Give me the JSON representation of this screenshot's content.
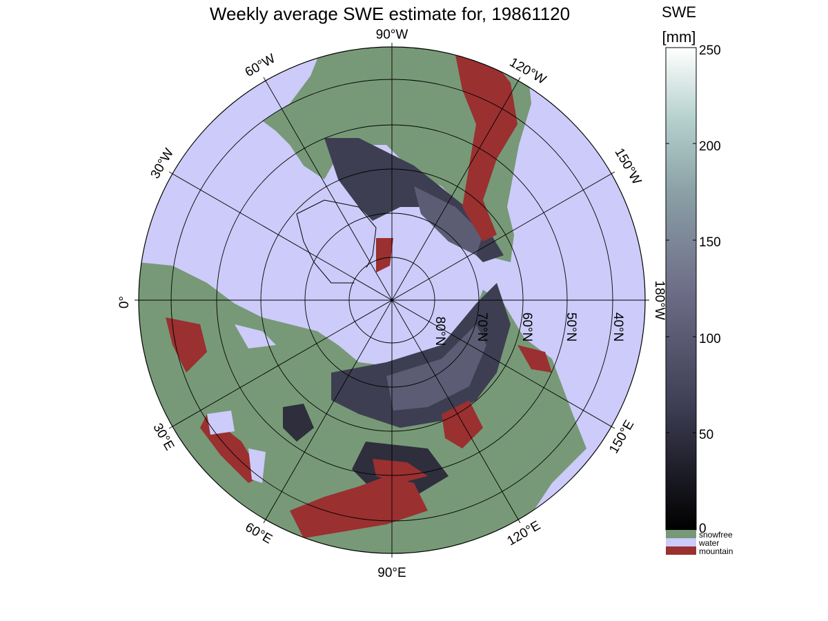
{
  "title": "Weekly average SWE estimate for, 19861120",
  "colorbar": {
    "title_line1": "SWE",
    "title_line2": "[mm]",
    "ticks": [
      "250",
      "200",
      "150",
      "100",
      "50",
      "0"
    ],
    "categories": [
      {
        "label": "snowfree",
        "color": "#779977"
      },
      {
        "label": "water",
        "color": "#cccbf9"
      },
      {
        "label": "mountain",
        "color": "#9a3030"
      }
    ]
  },
  "longitude_labels": {
    "lon_90w": "90°W",
    "lon_60w": "60°W",
    "lon_30w": "30°W",
    "lon_0": "0°",
    "lon_30e": "30°E",
    "lon_60e": "60°E",
    "lon_90e": "90°E",
    "lon_120e": "120°E",
    "lon_150e": "150°E",
    "lon_180w": "180°W",
    "lon_150w": "150°W",
    "lon_120w": "120°W"
  },
  "latitude_labels": {
    "lat_80": "80°N",
    "lat_70": "70°N",
    "lat_60": "60°N",
    "lat_50": "50°N",
    "lat_40": "40°N"
  },
  "colors": {
    "water": "#cccbf9",
    "snowfree": "#779977",
    "mountain": "#9a3030",
    "snow_dark": "#3a3a4a",
    "snow_mid": "#55556b"
  }
}
